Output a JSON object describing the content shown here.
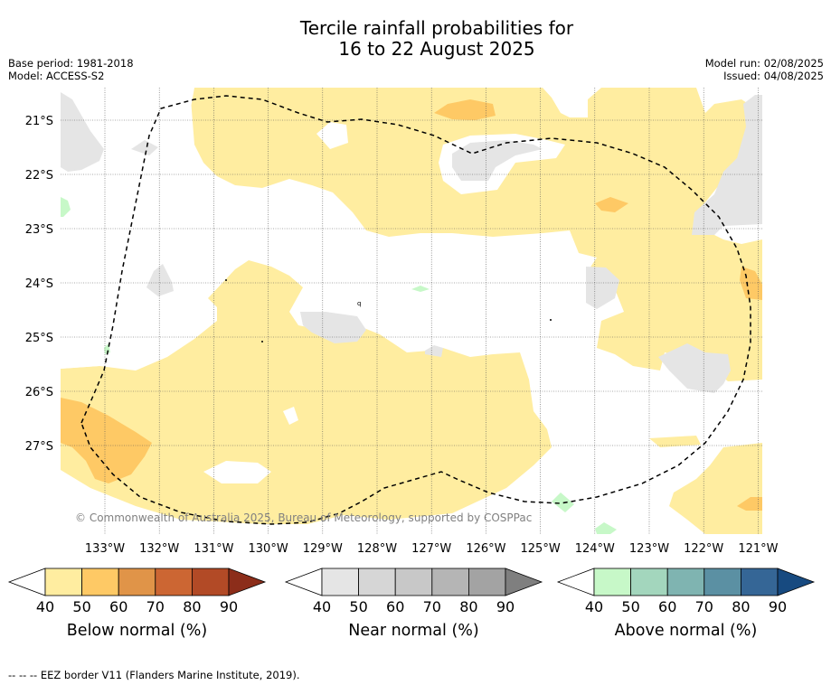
{
  "title_line1": "Tercile rainfall probabilities for",
  "title_line2": "16 to 22 August 2025",
  "base_period": "Base period: 1981-2018",
  "model": "Model: ACCESS-S2",
  "model_run": "Model run: 02/08/2025",
  "issued": "Issued: 04/08/2025",
  "copyright": "© Commonwealth of Australia 2025, Bureau of Meteorology, supported by COSPPac",
  "footer": "-- -- -- EEZ border V11 (Flanders Marine Institute, 2019).",
  "lat_labels": [
    "21°S",
    "22°S",
    "23°S",
    "24°S",
    "25°S",
    "26°S",
    "27°S"
  ],
  "lon_labels": [
    "133°W",
    "132°W",
    "131°W",
    "130°W",
    "129°W",
    "128°W",
    "127°W",
    "126°W",
    "125°W",
    "124°W",
    "123°W",
    "122°W",
    "121°W"
  ],
  "colorbars": [
    {
      "label": "Below normal (%)",
      "ticks": [
        "40",
        "50",
        "60",
        "70",
        "80",
        "90"
      ],
      "colors": [
        "#ffeda0",
        "#fec965",
        "#e09448",
        "#cc6633",
        "#b24a26"
      ],
      "extend_color": "#8c2d1a"
    },
    {
      "label": "Near normal (%)",
      "ticks": [
        "40",
        "50",
        "60",
        "70",
        "80",
        "90"
      ],
      "colors": [
        "#e5e5e5",
        "#d6d6d6",
        "#c8c8c8",
        "#b5b5b5",
        "#a3a3a3"
      ],
      "extend_color": "#7f7f7f"
    },
    {
      "label": "Above normal (%)",
      "ticks": [
        "40",
        "50",
        "60",
        "70",
        "80",
        "90"
      ],
      "colors": [
        "#c7f8c8",
        "#a3d6bd",
        "#7fb4b1",
        "#5b90a3",
        "#356696"
      ],
      "extend_color": "#174a80"
    }
  ],
  "colors": {
    "below_40": "#ffeda0",
    "below_50": "#fec965",
    "near_40": "#e5e5e5",
    "above_40": "#c7f8c8"
  }
}
